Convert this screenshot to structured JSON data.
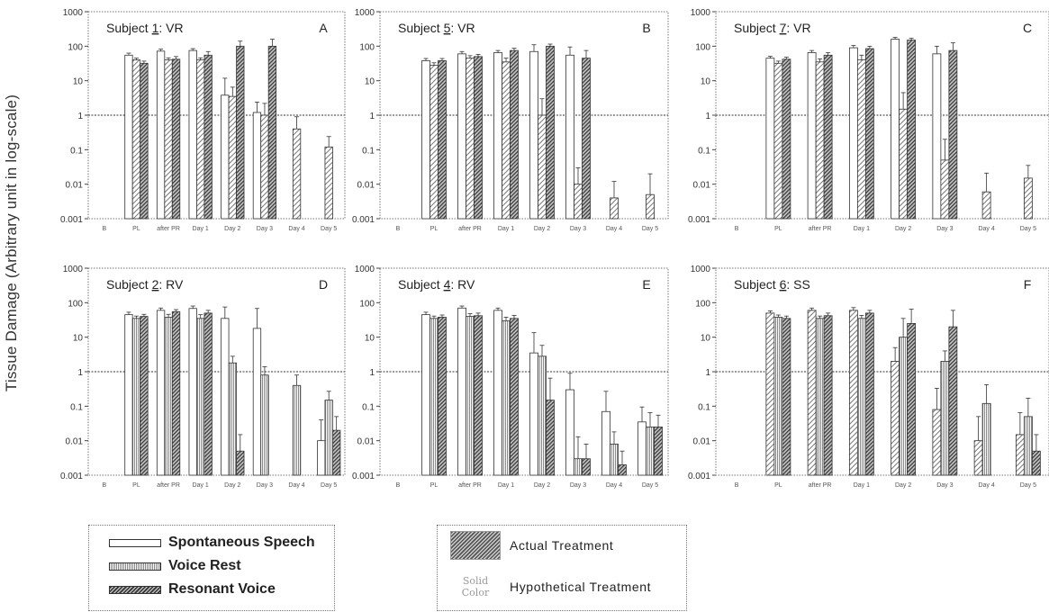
{
  "y_axis_title": "Tissue Damage (Arbitrary unit in log-scale)",
  "legend_patterns": [
    {
      "label": "Spontaneous Speech",
      "pattern": "ss"
    },
    {
      "label": "Voice Rest",
      "pattern": "vr"
    },
    {
      "label": "Resonant Voice",
      "pattern": "rv"
    }
  ],
  "legend_treatment": {
    "actual_label": "Actual Treatment",
    "solid_swatch_lines": [
      "Solid",
      "Color"
    ],
    "hypothetical_label": "Hypothetical Treatment"
  },
  "colors": {
    "axis": "#444444",
    "hatch_dark": "#333333",
    "hatch_light": "#bbbbbb",
    "reference_line": "#333333"
  },
  "chart_data": [
    {
      "panel_letter": "A",
      "subject_prefix": "Subject ",
      "subject_number": "1",
      "subject_suffix": ": VR",
      "type": "bar",
      "yscale": "log",
      "ylim": [
        0.001,
        1000
      ],
      "yticks": [
        "0.001",
        "0.01",
        "0.1",
        "1",
        "10",
        "100",
        "1000"
      ],
      "reference_line_y": 1,
      "actual_treatment": "vr",
      "categories": [
        "B",
        "PL",
        "after PR",
        "Day 1",
        "Day 2",
        "Day 3",
        "Day 4",
        "Day 5"
      ],
      "series": [
        {
          "pattern": "ss",
          "values": [
            null,
            55,
            72,
            75,
            3.8,
            1.2,
            null,
            null
          ],
          "errors": [
            null,
            8,
            10,
            10,
            8,
            1.2,
            null,
            null
          ]
        },
        {
          "pattern": "vr",
          "values": [
            null,
            40,
            40,
            40,
            3.5,
            1.0,
            0.4,
            0.12
          ],
          "errors": [
            null,
            5,
            6,
            6,
            3,
            1.2,
            0.5,
            0.12
          ]
        },
        {
          "pattern": "rv",
          "values": [
            null,
            32,
            42,
            55,
            100,
            100,
            null,
            null
          ],
          "errors": [
            null,
            5,
            8,
            15,
            40,
            60,
            null,
            null
          ]
        }
      ]
    },
    {
      "panel_letter": "B",
      "subject_prefix": "Subject ",
      "subject_number": "5",
      "subject_suffix": ": VR",
      "type": "bar",
      "yscale": "log",
      "ylim": [
        0.001,
        1000
      ],
      "yticks": [
        "0.001",
        "0.01",
        "0.1",
        "1",
        "10",
        "100",
        "1000"
      ],
      "reference_line_y": 1,
      "actual_treatment": "vr",
      "categories": [
        "B",
        "PL",
        "after PR",
        "Day 1",
        "Day 2",
        "Day 3",
        "Day 4",
        "Day 5"
      ],
      "series": [
        {
          "pattern": "ss",
          "values": [
            null,
            38,
            60,
            65,
            70,
            55,
            null,
            null
          ],
          "errors": [
            null,
            6,
            10,
            10,
            40,
            40,
            null,
            null
          ]
        },
        {
          "pattern": "vr",
          "values": [
            null,
            28,
            45,
            35,
            1.0,
            0.01,
            0.004,
            0.005
          ],
          "errors": [
            null,
            5,
            8,
            10,
            2,
            0.02,
            0.008,
            0.015
          ]
        },
        {
          "pattern": "rv",
          "values": [
            null,
            38,
            50,
            75,
            100,
            45,
            null,
            null
          ],
          "errors": [
            null,
            6,
            8,
            12,
            15,
            30,
            null,
            null
          ]
        }
      ]
    },
    {
      "panel_letter": "C",
      "subject_prefix": "Subject ",
      "subject_number": "7",
      "subject_suffix": ": VR",
      "type": "bar",
      "yscale": "log",
      "ylim": [
        0.001,
        1000
      ],
      "yticks": [
        "0.001",
        "0.01",
        "0.1",
        "1",
        "10",
        "100",
        "1000"
      ],
      "reference_line_y": 1,
      "actual_treatment": "vr",
      "categories": [
        "B",
        "PL",
        "after PR",
        "Day 1",
        "Day 2",
        "Day 3",
        "Day 4",
        "Day 5"
      ],
      "series": [
        {
          "pattern": "ss",
          "values": [
            null,
            45,
            65,
            90,
            160,
            60,
            null,
            null
          ],
          "errors": [
            null,
            6,
            10,
            15,
            20,
            40,
            null,
            null
          ]
        },
        {
          "pattern": "vr",
          "values": [
            null,
            32,
            35,
            40,
            1.5,
            0.05,
            0.006,
            0.015
          ],
          "errors": [
            null,
            5,
            8,
            15,
            3,
            0.15,
            0.015,
            0.02
          ]
        },
        {
          "pattern": "rv",
          "values": [
            null,
            42,
            55,
            85,
            150,
            75,
            null,
            null
          ],
          "errors": [
            null,
            6,
            10,
            15,
            20,
            50,
            null,
            null
          ]
        }
      ]
    },
    {
      "panel_letter": "D",
      "subject_prefix": "Subject ",
      "subject_number": "2",
      "subject_suffix": ": RV",
      "type": "bar",
      "yscale": "log",
      "ylim": [
        0.001,
        1000
      ],
      "yticks": [
        "0.001",
        "0.01",
        "0.1",
        "1",
        "10",
        "100",
        "1000"
      ],
      "reference_line_y": 1,
      "actual_treatment": "rv",
      "categories": [
        "B",
        "PL",
        "after PR",
        "Day 1",
        "Day 2",
        "Day 3",
        "Day 4",
        "Day 5"
      ],
      "series": [
        {
          "pattern": "ss",
          "values": [
            null,
            45,
            60,
            68,
            35,
            18,
            null,
            0.01
          ],
          "errors": [
            null,
            8,
            10,
            12,
            40,
            50,
            null,
            0.03
          ]
        },
        {
          "pattern": "vr",
          "values": [
            null,
            35,
            38,
            35,
            1.8,
            0.8,
            0.4,
            0.15
          ],
          "errors": [
            null,
            6,
            8,
            10,
            1,
            0.6,
            0.4,
            0.12
          ]
        },
        {
          "pattern": "rv",
          "values": [
            null,
            40,
            55,
            50,
            0.005,
            null,
            null,
            0.02
          ],
          "errors": [
            null,
            6,
            8,
            10,
            0.01,
            null,
            null,
            0.03
          ]
        }
      ]
    },
    {
      "panel_letter": "E",
      "subject_prefix": "Subject ",
      "subject_number": "4",
      "subject_suffix": ": RV",
      "type": "bar",
      "yscale": "log",
      "ylim": [
        0.001,
        1000
      ],
      "yticks": [
        "0.001",
        "0.01",
        "0.1",
        "1",
        "10",
        "100",
        "1000"
      ],
      "reference_line_y": 1,
      "actual_treatment": "rv",
      "categories": [
        "B",
        "PL",
        "after PR",
        "Day 1",
        "Day 2",
        "Day 3",
        "Day 4",
        "Day 5"
      ],
      "series": [
        {
          "pattern": "ss",
          "values": [
            null,
            45,
            70,
            60,
            3.5,
            0.3,
            0.07,
            0.035
          ],
          "errors": [
            null,
            8,
            10,
            10,
            10,
            0.6,
            0.2,
            0.06
          ]
        },
        {
          "pattern": "vr",
          "values": [
            null,
            35,
            40,
            30,
            2.8,
            0.003,
            0.008,
            0.025
          ],
          "errors": [
            null,
            6,
            8,
            8,
            3,
            0.01,
            0.01,
            0.04
          ]
        },
        {
          "pattern": "rv",
          "values": [
            null,
            38,
            42,
            35,
            0.15,
            0.003,
            0.002,
            0.025
          ],
          "errors": [
            null,
            6,
            8,
            8,
            0.5,
            0.005,
            0.003,
            0.03
          ]
        }
      ]
    },
    {
      "panel_letter": "F",
      "subject_prefix": "Subject ",
      "subject_number": "6",
      "subject_suffix": ": SS",
      "type": "bar",
      "yscale": "log",
      "ylim": [
        0.001,
        1000
      ],
      "yticks": [
        "0.001",
        "0.01",
        "0.1",
        "1",
        "10",
        "100",
        "1000"
      ],
      "reference_line_y": 1,
      "actual_treatment": "ss",
      "categories": [
        "B",
        "PL",
        "after PR",
        "Day 1",
        "Day 2",
        "Day 3",
        "Day 4",
        "Day 5"
      ],
      "series": [
        {
          "pattern": "ss",
          "values": [
            null,
            50,
            60,
            60,
            2.0,
            0.08,
            0.01,
            0.015
          ],
          "errors": [
            null,
            8,
            10,
            12,
            3,
            0.25,
            0.04,
            0.05
          ]
        },
        {
          "pattern": "vr",
          "values": [
            null,
            38,
            35,
            35,
            10,
            2.0,
            0.12,
            0.05
          ],
          "errors": [
            null,
            6,
            6,
            8,
            25,
            2,
            0.3,
            0.12
          ]
        },
        {
          "pattern": "rv",
          "values": [
            null,
            35,
            42,
            50,
            25,
            20,
            null,
            0.005
          ],
          "errors": [
            null,
            6,
            8,
            10,
            40,
            40,
            null,
            0.01
          ]
        }
      ]
    }
  ]
}
